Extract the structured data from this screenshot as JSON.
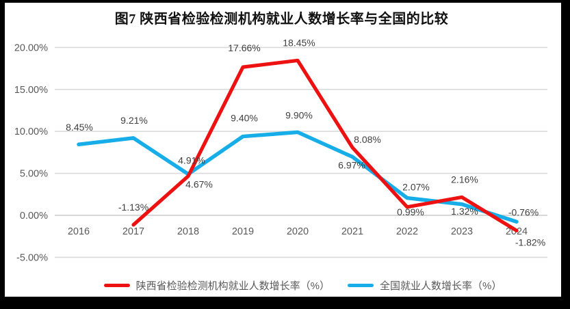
{
  "title": "图7 陕西省检验检测机构就业人数增长率与全国的比较",
  "chart_data": {
    "type": "line",
    "title": "图7 陕西省检验检测机构就业人数增长率与全国的比较",
    "categories": [
      "2016",
      "2017",
      "2018",
      "2019",
      "2020",
      "2021",
      "2022",
      "2023",
      "2024"
    ],
    "xlabel": "",
    "ylabel": "",
    "ylim": [
      -5,
      20
    ],
    "grid": true,
    "legend_position": "bottom",
    "y_ticks": [
      {
        "label": "20.00%",
        "value": 20
      },
      {
        "label": "15.00%",
        "value": 15
      },
      {
        "label": "10.00%",
        "value": 10
      },
      {
        "label": "5.00%",
        "value": 5
      },
      {
        "label": "0.00%",
        "value": 0
      },
      {
        "label": "-5.00%",
        "value": -5
      }
    ],
    "series": [
      {
        "name": "陕西省检验检测机构就业人数增长率（%）",
        "color": "#ed1111",
        "values": [
          null,
          -1.13,
          4.67,
          17.66,
          18.45,
          8.08,
          0.99,
          2.16,
          -1.82
        ],
        "labels": [
          "",
          "-1.13%",
          "4.67%",
          "17.66%",
          "18.45%",
          "8.08%",
          "0.99%",
          "2.16%",
          "-1.82%"
        ],
        "label_offsets": [
          [
            0,
            0
          ],
          [
            0,
            -26
          ],
          [
            16,
            12
          ],
          [
            2,
            -28
          ],
          [
            2,
            -26
          ],
          [
            22,
            -12
          ],
          [
            5,
            7
          ],
          [
            4,
            -26
          ],
          [
            20,
            17
          ]
        ]
      },
      {
        "name": "全国就业人数增长率（%）",
        "color": "#16ade8",
        "values": [
          8.45,
          9.21,
          4.91,
          9.4,
          9.9,
          6.97,
          2.07,
          1.32,
          -0.76
        ],
        "labels": [
          "8.45%",
          "9.21%",
          "4.91%",
          "9.40%",
          "9.90%",
          "6.97%",
          "2.07%",
          "1.32%",
          "-0.76%"
        ],
        "label_offsets": [
          [
            1,
            -25
          ],
          [
            1,
            -26
          ],
          [
            5,
            -20
          ],
          [
            2,
            -27
          ],
          [
            2,
            -25
          ],
          [
            -1,
            12
          ],
          [
            13,
            -16
          ],
          [
            4,
            10
          ],
          [
            10,
            -14
          ]
        ]
      }
    ],
    "colors": {
      "grid": "#d9d9d9",
      "axis_text": "#595959",
      "data_label": "#404040"
    }
  }
}
